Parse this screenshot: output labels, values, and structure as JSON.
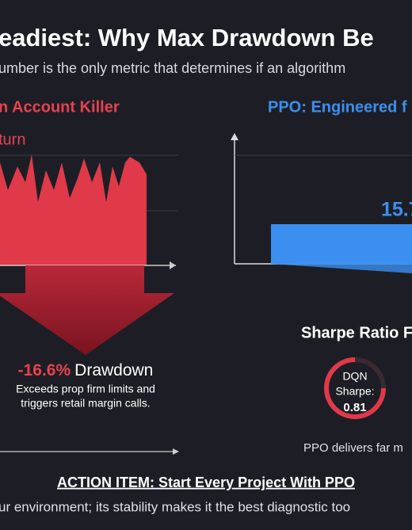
{
  "header": {
    "title": "eadiest: Why Max Drawdown Be",
    "subtitle": "umber is the only metric that determines if an algorithm"
  },
  "left": {
    "heading": "n Account Killer",
    "axis_label": "turn",
    "drawdown_value": "-16.6%",
    "drawdown_word": "Drawdown",
    "note_lines": [
      "Exceeds prop firm limits and",
      "triggers retail margin calls."
    ]
  },
  "right": {
    "heading": "PPO: Engineered f",
    "bar_label": "15.7",
    "sharpe_heading": "Sharpe Ratio F",
    "gauge_lines": [
      "DQN",
      "Sharpe:",
      "0.81"
    ],
    "note": "PPO delivers far m"
  },
  "footer": {
    "action": "ACTION ITEM: Start Every Project With PPO",
    "text": "ur environment; its stability makes it the best diagnostic too"
  }
}
